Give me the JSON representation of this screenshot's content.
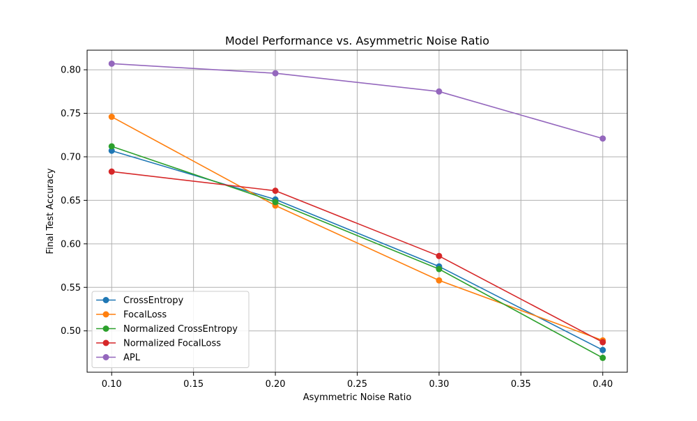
{
  "chart_data": {
    "type": "line",
    "title": "Model Performance vs. Asymmetric Noise Ratio",
    "xlabel": "Asymmetric Noise Ratio",
    "ylabel": "Final Test Accuracy",
    "x": [
      0.1,
      0.2,
      0.3,
      0.4
    ],
    "xlim": [
      0.085,
      0.415
    ],
    "ylim": [
      0.4525,
      0.8225
    ],
    "xticks": [
      0.1,
      0.15,
      0.2,
      0.25,
      0.3,
      0.35,
      0.4
    ],
    "xtick_labels": [
      "0.10",
      "0.15",
      "0.20",
      "0.25",
      "0.30",
      "0.35",
      "0.40"
    ],
    "yticks": [
      0.5,
      0.55,
      0.6,
      0.65,
      0.7,
      0.75,
      0.8
    ],
    "ytick_labels": [
      "0.50",
      "0.55",
      "0.60",
      "0.65",
      "0.70",
      "0.75",
      "0.80"
    ],
    "grid": true,
    "legend_position": "lower-left",
    "series": [
      {
        "name": "CrossEntropy",
        "color": "#1f77b4",
        "values": [
          0.707,
          0.651,
          0.574,
          0.478
        ]
      },
      {
        "name": "FocalLoss",
        "color": "#ff7f0e",
        "values": [
          0.746,
          0.644,
          0.558,
          0.489
        ]
      },
      {
        "name": "Normalized CrossEntropy",
        "color": "#2ca02c",
        "values": [
          0.712,
          0.648,
          0.571,
          0.469
        ]
      },
      {
        "name": "Normalized FocalLoss",
        "color": "#d62728",
        "values": [
          0.683,
          0.661,
          0.586,
          0.487
        ]
      },
      {
        "name": "APL",
        "color": "#9467bd",
        "values": [
          0.807,
          0.796,
          0.775,
          0.721
        ]
      }
    ]
  }
}
